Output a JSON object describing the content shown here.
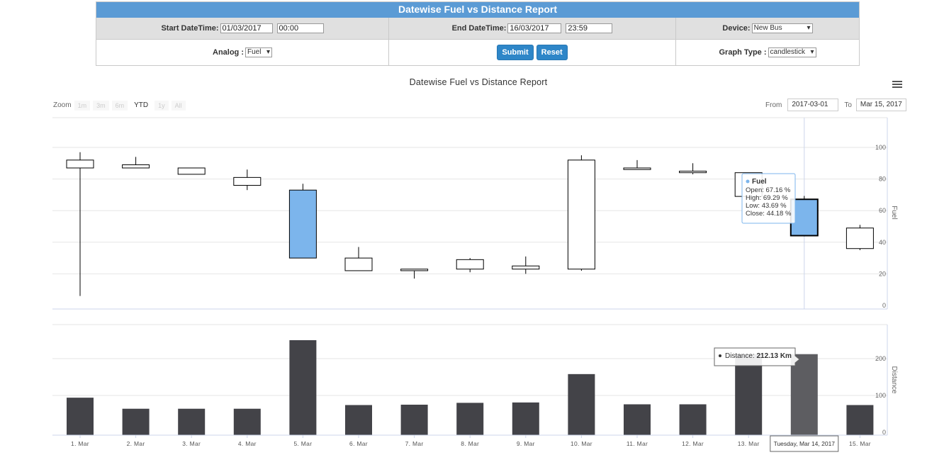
{
  "form": {
    "title": "Datewise Fuel vs Distance Report",
    "start_label": "Start DateTime:",
    "start_date": "01/03/2017",
    "start_time": "00:00",
    "end_label": "End DateTime:",
    "end_date": "16/03/2017",
    "end_time": "23:59",
    "device_label": "Device:",
    "device_value": "New Bus",
    "analog_label": "Analog :",
    "analog_value": "Fuel",
    "submit_label": "Submit",
    "reset_label": "Reset",
    "graph_type_label": "Graph Type :",
    "graph_type_value": "candlestick"
  },
  "toolbar": {
    "zoom_label": "Zoom",
    "zoom_buttons": [
      "1m",
      "3m",
      "6m",
      "YTD",
      "1y",
      "All"
    ],
    "zoom_active": "YTD",
    "from_label": "From",
    "from_value": "2017-03-01",
    "to_label": "To",
    "to_value": "Mar 15, 2017"
  },
  "chart_data": [
    {
      "type": "candlestick",
      "title": "Datewise Fuel vs Distance Report",
      "ylabel": "Fuel",
      "ylim": [
        0,
        120
      ],
      "yticks": [
        0,
        20,
        40,
        60,
        80,
        100
      ],
      "categories": [
        "1. Mar",
        "2. Mar",
        "3. Mar",
        "4. Mar",
        "5. Mar",
        "6. Mar",
        "7. Mar",
        "8. Mar",
        "9. Mar",
        "10. Mar",
        "11. Mar",
        "12. Mar",
        "13. Mar",
        "14. Mar",
        "15. Mar"
      ],
      "series": [
        {
          "name": "Fuel",
          "open": [
            87,
            87,
            83,
            76,
            73,
            22,
            22,
            23,
            23,
            23,
            86,
            84,
            69,
            67.16,
            36
          ],
          "high": [
            97,
            94,
            87,
            86,
            77,
            37,
            23,
            30,
            31,
            95,
            92,
            90,
            84,
            69.29,
            51
          ],
          "low": [
            6,
            88,
            83,
            73,
            30,
            22,
            17,
            21,
            20,
            22,
            86,
            83,
            69,
            43.69,
            35
          ],
          "close": [
            92,
            89,
            87,
            81,
            30,
            30,
            23,
            29,
            25,
            92,
            87,
            85,
            84,
            44.18,
            49
          ]
        }
      ],
      "tooltip": {
        "series": "Fuel",
        "lines": [
          "Open: 67.16 %",
          "High: 69.29 %",
          "Low: 43.69 %",
          "Close: 44.18 %"
        ]
      },
      "hover_index": 13
    },
    {
      "type": "bar",
      "ylabel": "Distance",
      "ylim": [
        0,
        300
      ],
      "yticks": [
        0,
        100,
        200
      ],
      "categories": [
        "1. Mar",
        "2. Mar",
        "3. Mar",
        "4. Mar",
        "5. Mar",
        "6. Mar",
        "7. Mar",
        "8. Mar",
        "9. Mar",
        "10. Mar",
        "11. Mar",
        "12. Mar",
        "13. Mar",
        "14. Mar",
        "15. Mar"
      ],
      "series": [
        {
          "name": "Distance",
          "values": [
            94,
            64,
            64,
            64,
            250,
            74,
            75,
            80,
            81,
            158,
            76,
            76,
            212,
            212.13,
            74
          ]
        }
      ],
      "tooltip": {
        "label": "Distance: ",
        "value": "212.13 Km"
      },
      "crosshair_label": "Tuesday, Mar 14, 2017",
      "colors": {
        "bar": "#434348",
        "bar_hover": "#5d5d61"
      }
    }
  ],
  "colors": {
    "header": "#5b9bd5",
    "candle_down": "#7cb5ec",
    "candle_up": "#ffffff",
    "button": "#2e86c8"
  }
}
